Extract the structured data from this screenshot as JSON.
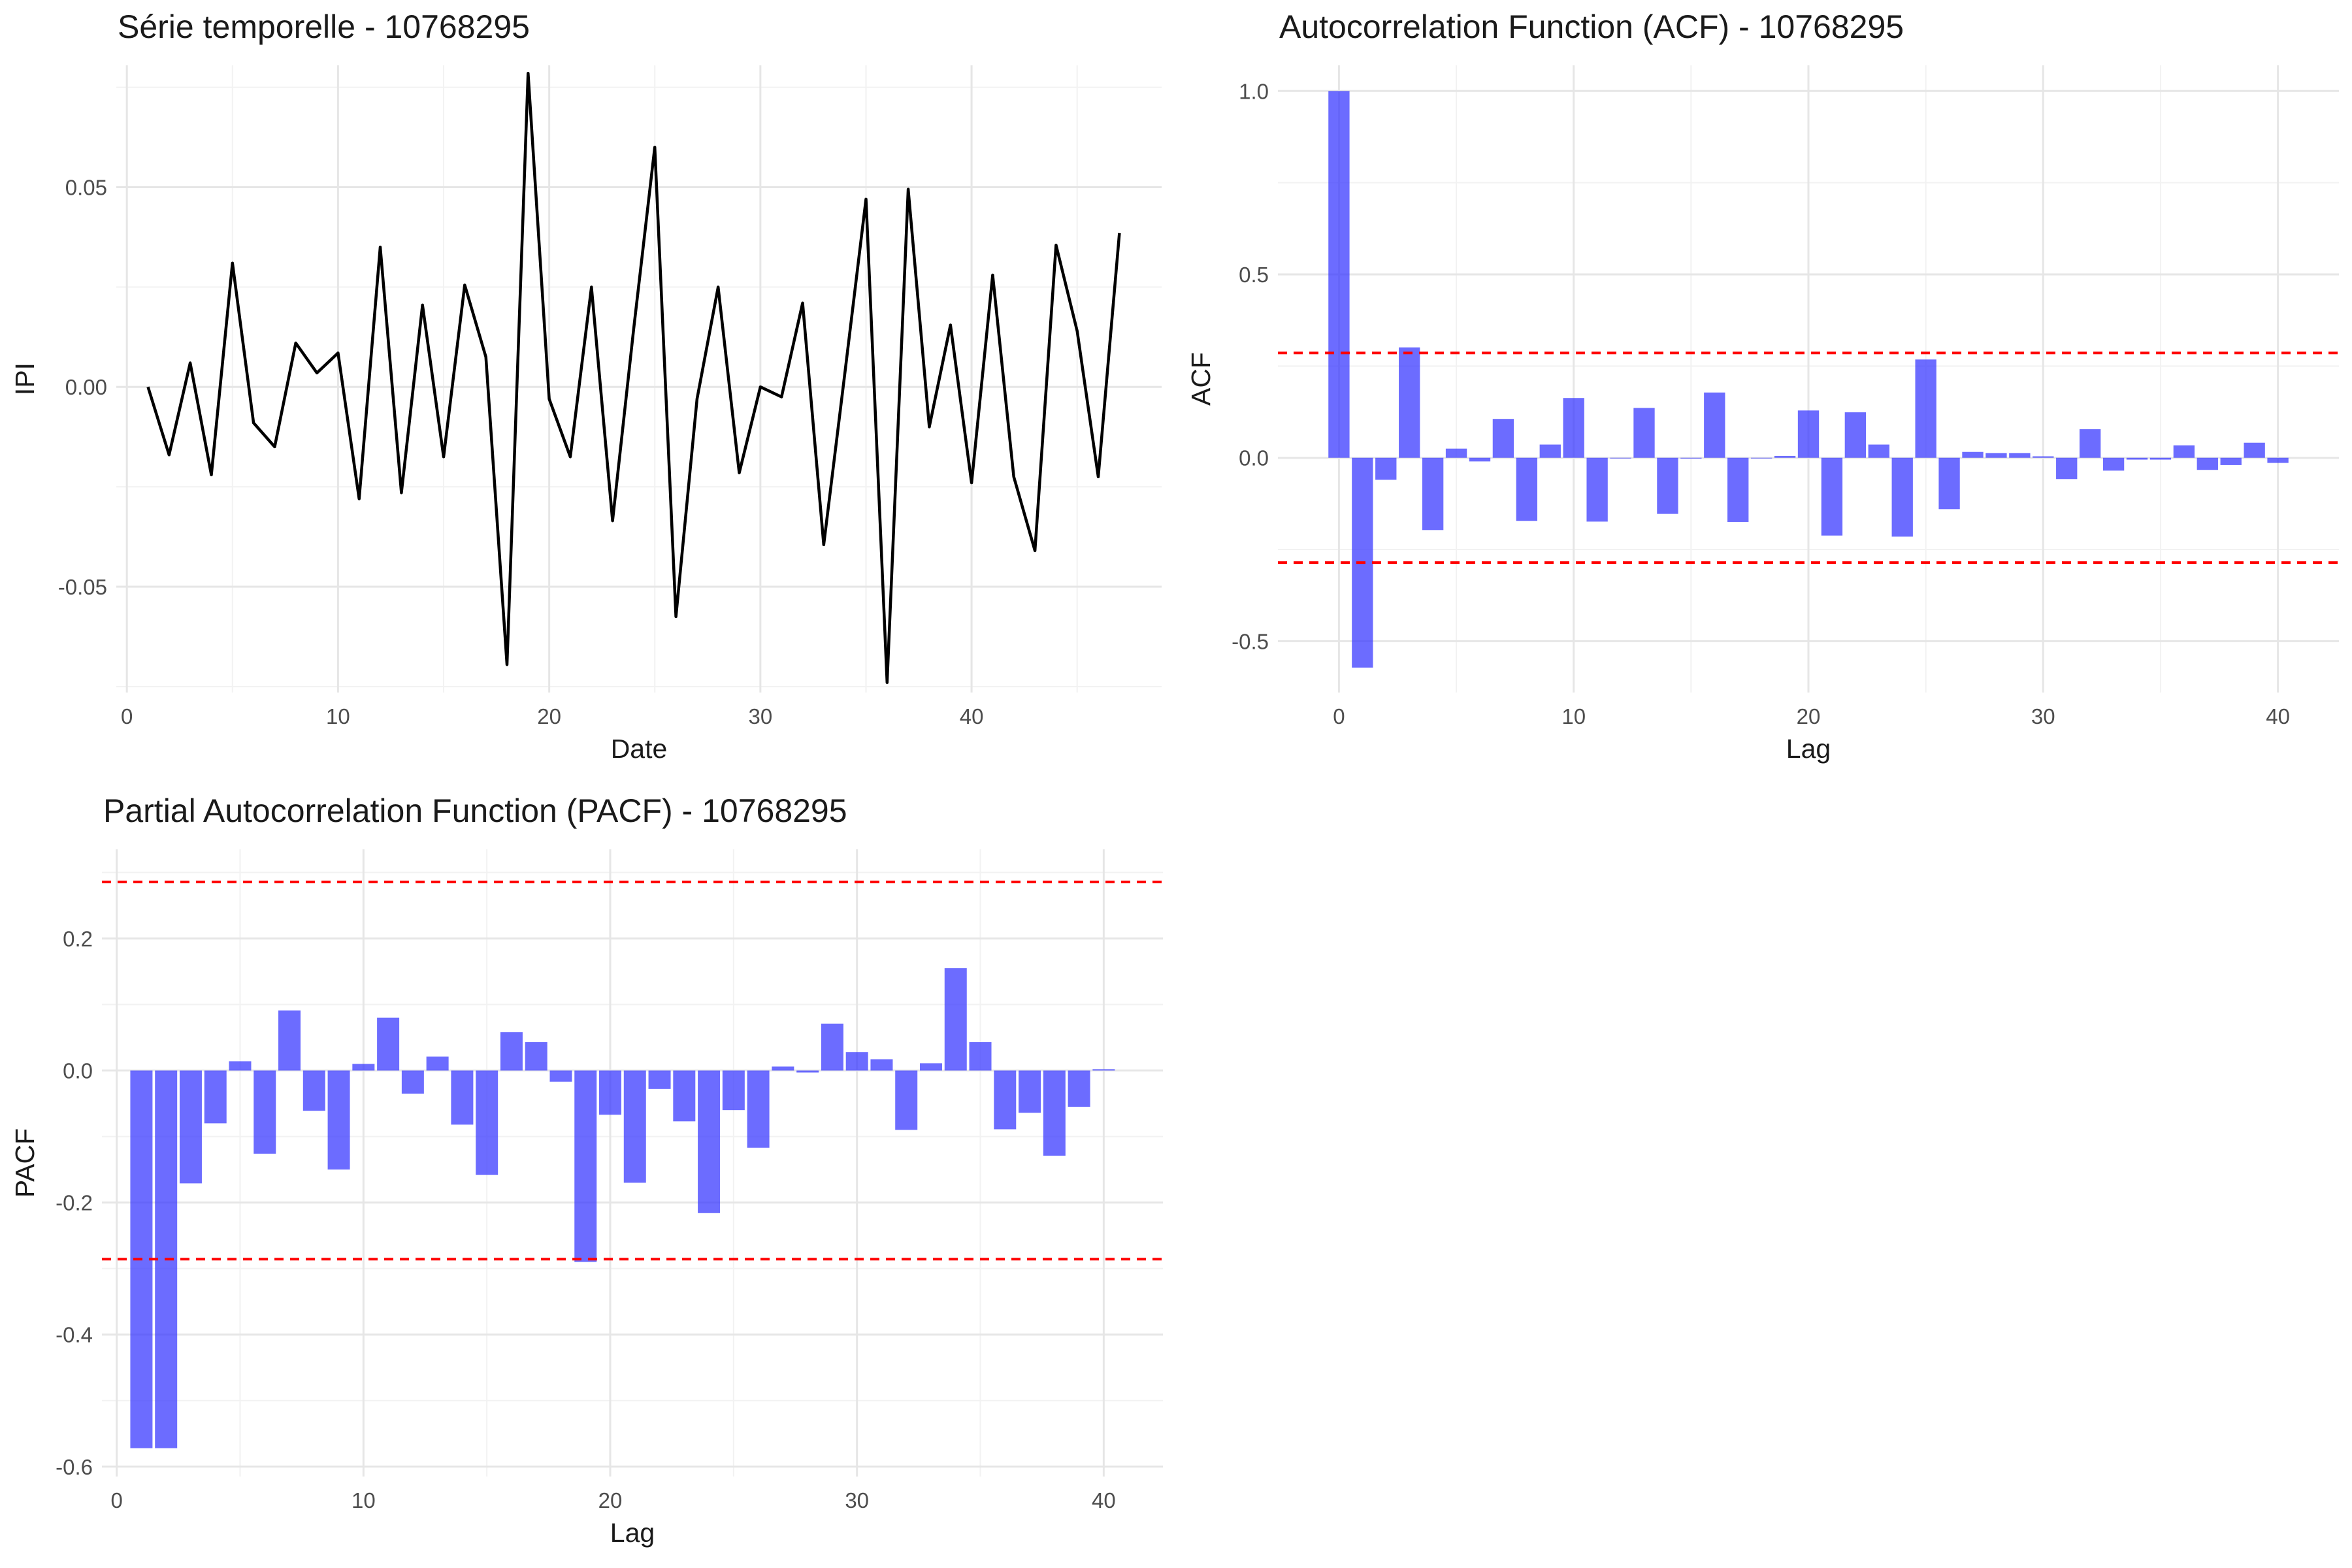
{
  "chart_data": [
    {
      "type": "line",
      "title": "Série temporelle - 10768295",
      "xlabel": "Date",
      "ylabel": "IPI",
      "xlim": [
        -0.5,
        49
      ],
      "ylim": [
        -0.0765,
        0.0805
      ],
      "x_ticks": [
        0,
        10,
        20,
        30,
        40
      ],
      "x_tick_labels": [
        "0",
        "10",
        "20",
        "30",
        "40"
      ],
      "y_ticks": [
        -0.05,
        0.0,
        0.05
      ],
      "y_tick_labels": [
        "-0.05",
        "0.00",
        "0.05"
      ],
      "grid": true,
      "color": "#000000",
      "x": [
        1,
        2,
        3,
        4,
        5,
        6,
        7,
        8,
        9,
        10,
        11,
        12,
        13,
        14,
        15,
        16,
        17,
        18,
        19,
        20,
        21,
        22,
        23,
        24,
        25,
        26,
        27,
        28,
        29,
        30,
        31,
        32,
        33,
        34,
        35,
        36,
        37,
        38,
        39,
        40,
        41,
        42,
        43,
        44,
        45,
        46,
        47
      ],
      "y": [
        0.0,
        -0.017,
        0.006,
        -0.022,
        0.031,
        -0.009,
        -0.015,
        0.011,
        0.0035,
        0.0085,
        -0.028,
        0.035,
        -0.0265,
        0.0205,
        -0.0175,
        0.0255,
        0.0075,
        -0.0695,
        0.0785,
        -0.003,
        -0.0175,
        0.025,
        -0.0335,
        0.0145,
        0.06,
        -0.0575,
        -0.003,
        0.025,
        -0.0215,
        0.0,
        -0.0025,
        0.021,
        -0.0395,
        0.0035,
        0.047,
        -0.074,
        0.0495,
        -0.01,
        0.0155,
        -0.024,
        0.028,
        -0.0225,
        -0.041,
        0.0355,
        0.014,
        -0.0225,
        0.0385
      ]
    },
    {
      "type": "bar",
      "title": "Autocorrelation Function (ACF) - 10768295",
      "xlabel": "Lag",
      "ylabel": "ACF",
      "xlim": [
        -2.6,
        42.6
      ],
      "ylim": [
        -0.64,
        1.07
      ],
      "x_ticks": [
        0,
        10,
        20,
        30,
        40
      ],
      "x_tick_labels": [
        "0",
        "10",
        "20",
        "30",
        "40"
      ],
      "y_ticks": [
        -0.5,
        0.0,
        0.5,
        1.0
      ],
      "y_tick_labels": [
        "-0.5",
        "0.0",
        "0.5",
        "1.0"
      ],
      "grid": true,
      "bar_color": "#3333ff",
      "confidence_bound": 0.2857,
      "confidence_color": "#ff0000",
      "x": [
        0,
        1,
        2,
        3,
        4,
        5,
        6,
        7,
        8,
        9,
        10,
        11,
        12,
        13,
        14,
        15,
        16,
        17,
        18,
        19,
        20,
        21,
        22,
        23,
        24,
        25,
        26,
        27,
        28,
        29,
        30,
        31,
        32,
        33,
        34,
        35,
        36,
        37,
        38,
        39,
        40
      ],
      "values": [
        1.0,
        -0.572,
        -0.06,
        0.301,
        -0.197,
        0.025,
        -0.01,
        0.106,
        -0.172,
        0.036,
        0.163,
        -0.174,
        0.0,
        0.136,
        -0.153,
        -0.002,
        0.178,
        -0.175,
        0.0,
        0.005,
        0.129,
        -0.212,
        0.124,
        0.036,
        -0.215,
        0.268,
        -0.14,
        0.016,
        0.013,
        0.013,
        0.004,
        -0.058,
        0.078,
        -0.035,
        -0.005,
        -0.005,
        0.034,
        -0.033,
        -0.02,
        0.041,
        -0.014
      ]
    },
    {
      "type": "bar",
      "title": "Partial Autocorrelation Function (PACF) - 10768295",
      "xlabel": "Lag",
      "ylabel": "PACF",
      "xlim": [
        -0.6,
        42.4
      ],
      "ylim": [
        -0.615,
        0.335
      ],
      "x_ticks": [
        0,
        10,
        20,
        30,
        40
      ],
      "x_tick_labels": [
        "0",
        "10",
        "20",
        "30",
        "40"
      ],
      "y_ticks": [
        -0.6,
        -0.4,
        -0.2,
        0.0,
        0.2
      ],
      "y_tick_labels": [
        "-0.6",
        "-0.4",
        "-0.2",
        "0.0",
        "0.2"
      ],
      "grid": true,
      "bar_color": "#3333ff",
      "confidence_bound": 0.2857,
      "confidence_color": "#ff0000",
      "x": [
        1,
        2,
        3,
        4,
        5,
        6,
        7,
        8,
        9,
        10,
        11,
        12,
        13,
        14,
        15,
        16,
        17,
        18,
        19,
        20,
        21,
        22,
        23,
        24,
        25,
        26,
        27,
        28,
        29,
        30,
        31,
        32,
        33,
        34,
        35,
        36,
        37,
        38,
        39,
        40
      ],
      "values": [
        -0.572,
        -0.572,
        -0.171,
        -0.08,
        0.014,
        -0.126,
        0.091,
        -0.061,
        -0.15,
        0.01,
        0.08,
        -0.035,
        0.021,
        -0.082,
        -0.158,
        0.058,
        0.043,
        -0.017,
        -0.29,
        -0.067,
        -0.17,
        -0.028,
        -0.077,
        -0.216,
        -0.06,
        -0.117,
        0.006,
        -0.003,
        0.071,
        0.028,
        0.017,
        -0.09,
        0.011,
        0.155,
        0.043,
        -0.089,
        -0.064,
        -0.129,
        -0.055,
        0.002
      ]
    }
  ]
}
